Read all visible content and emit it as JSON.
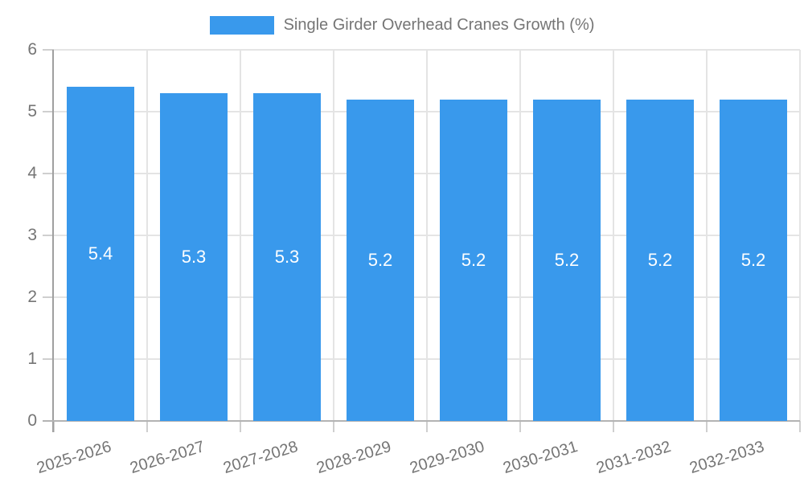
{
  "chart_data": {
    "type": "bar",
    "title": "",
    "legend": {
      "label": "Single Girder Overhead Cranes Growth (%)",
      "position": "top-center"
    },
    "categories": [
      "2025-2026",
      "2026-2027",
      "2027-2028",
      "2028-2029",
      "2029-2030",
      "2030-2031",
      "2031-2032",
      "2032-2033"
    ],
    "series": [
      {
        "name": "Single Girder Overhead Cranes Growth (%)",
        "values": [
          5.4,
          5.3,
          5.3,
          5.2,
          5.2,
          5.2,
          5.2,
          5.2
        ]
      }
    ],
    "bar_value_labels": [
      "5.4",
      "5.3",
      "5.3",
      "5.2",
      "5.2",
      "5.2",
      "5.2",
      "5.2"
    ],
    "xlabel": "",
    "ylabel": "",
    "ylim": [
      0,
      6
    ],
    "yticks": [
      0,
      1,
      2,
      3,
      4,
      5,
      6
    ],
    "grid": true,
    "x_labels_rotated": true,
    "colors": {
      "bar": "#3999ec",
      "grid": "#e4e4e4",
      "tick_mark": "#cfcfcf",
      "y_axis": "#a0a0a0",
      "x_axis": "#b3b3b3",
      "tick_text": "#757575",
      "legend_text": "#757575",
      "bar_label_text": "#ffffff",
      "background": "#ffffff"
    }
  }
}
